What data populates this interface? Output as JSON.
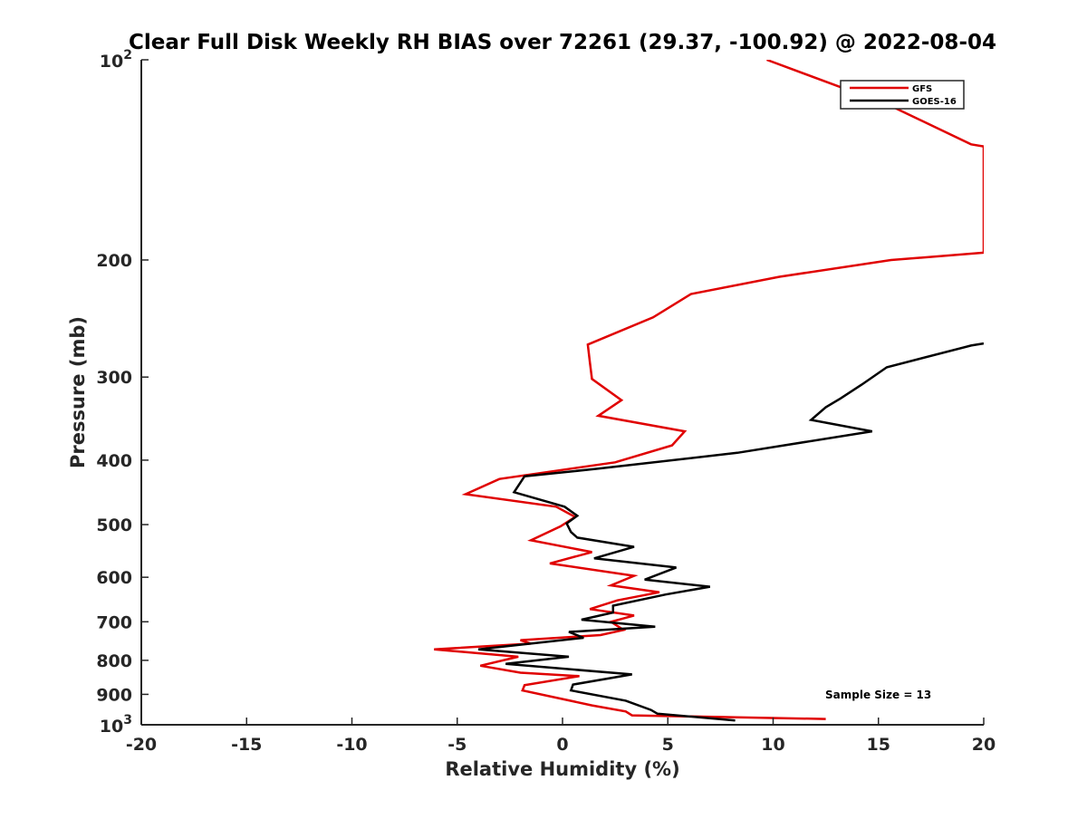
{
  "chart_data": {
    "type": "line",
    "title": "Clear Full Disk Weekly RH BIAS over 72261 (29.37, -100.92) @ 2022-08-04",
    "xlabel": "Relative Humidity (%)",
    "ylabel": "Pressure (mb)",
    "xlim": [
      -20,
      20
    ],
    "ylim": [
      100,
      1000
    ],
    "y_scale": "log",
    "y_reversed": true,
    "grid": false,
    "legend_position": "top-right",
    "x_ticks": [
      -20,
      -15,
      -10,
      -5,
      0,
      5,
      10,
      15,
      20
    ],
    "x_tick_labels": [
      "-20",
      "-15",
      "-10",
      "-5",
      "0",
      "5",
      "10",
      "15",
      "20"
    ],
    "y_ticks": [
      200,
      300,
      400,
      500,
      600,
      700,
      800,
      900
    ],
    "y_tick_labels": [
      "200",
      "300",
      "400",
      "500",
      "600",
      "700",
      "800",
      "900"
    ],
    "y_tick_top": {
      "base": "10",
      "exp": "2"
    },
    "y_tick_bottom": {
      "base": "10",
      "exp": "3"
    },
    "annotation": "Sample Size = 13",
    "series": [
      {
        "name": "GFS",
        "color": "#e00000",
        "points": [
          [
            9.7,
            100
          ],
          [
            15.5,
            117
          ],
          [
            19.4,
            134
          ],
          [
            20.0,
            135
          ],
          [
            20.0,
            195
          ],
          [
            15.6,
            200
          ],
          [
            10.3,
            212
          ],
          [
            6.1,
            225
          ],
          [
            4.3,
            244
          ],
          [
            1.2,
            268
          ],
          [
            1.3,
            285
          ],
          [
            1.4,
            302
          ],
          [
            2.8,
            325
          ],
          [
            1.7,
            343
          ],
          [
            5.8,
            362
          ],
          [
            5.2,
            380
          ],
          [
            2.5,
            403
          ],
          [
            -3.0,
            427
          ],
          [
            -4.6,
            450
          ],
          [
            -0.3,
            470
          ],
          [
            0.6,
            487
          ],
          [
            -0.1,
            503
          ],
          [
            -1.5,
            528
          ],
          [
            1.4,
            550
          ],
          [
            -0.6,
            572
          ],
          [
            3.4,
            597
          ],
          [
            2.3,
            617
          ],
          [
            4.6,
            632
          ],
          [
            2.6,
            650
          ],
          [
            1.3,
            670
          ],
          [
            3.4,
            685
          ],
          [
            2.3,
            700
          ],
          [
            2.9,
            720
          ],
          [
            1.8,
            733
          ],
          [
            -2.0,
            746
          ],
          [
            -1.5,
            755
          ],
          [
            -6.1,
            770
          ],
          [
            -2.1,
            790
          ],
          [
            -3.9,
            815
          ],
          [
            -2.0,
            835
          ],
          [
            0.8,
            845
          ],
          [
            -1.8,
            872
          ],
          [
            -1.9,
            888
          ],
          [
            1.4,
            935
          ],
          [
            3.0,
            955
          ],
          [
            3.3,
            968
          ],
          [
            12.5,
            980
          ]
        ]
      },
      {
        "name": "GOES-16",
        "color": "#000000",
        "points": [
          [
            20.0,
            267
          ],
          [
            19.4,
            269
          ],
          [
            15.4,
            290
          ],
          [
            14.2,
            308
          ],
          [
            13.2,
            323
          ],
          [
            12.5,
            333
          ],
          [
            11.8,
            348
          ],
          [
            14.7,
            362
          ],
          [
            8.3,
            390
          ],
          [
            1.7,
            412
          ],
          [
            -1.8,
            423
          ],
          [
            -2.3,
            447
          ],
          [
            0.1,
            470
          ],
          [
            0.7,
            485
          ],
          [
            0.2,
            498
          ],
          [
            0.4,
            513
          ],
          [
            0.7,
            523
          ],
          [
            3.4,
            540
          ],
          [
            1.5,
            562
          ],
          [
            5.4,
            580
          ],
          [
            3.9,
            605
          ],
          [
            7.0,
            620
          ],
          [
            4.9,
            637
          ],
          [
            2.4,
            662
          ],
          [
            2.4,
            678
          ],
          [
            0.9,
            695
          ],
          [
            4.4,
            712
          ],
          [
            0.3,
            725
          ],
          [
            1.0,
            740
          ],
          [
            -4.0,
            770
          ],
          [
            0.3,
            790
          ],
          [
            -2.7,
            810
          ],
          [
            3.3,
            840
          ],
          [
            0.5,
            870
          ],
          [
            0.4,
            888
          ],
          [
            3.0,
            920
          ],
          [
            4.2,
            950
          ],
          [
            4.5,
            962
          ],
          [
            8.2,
            985
          ]
        ]
      }
    ]
  }
}
